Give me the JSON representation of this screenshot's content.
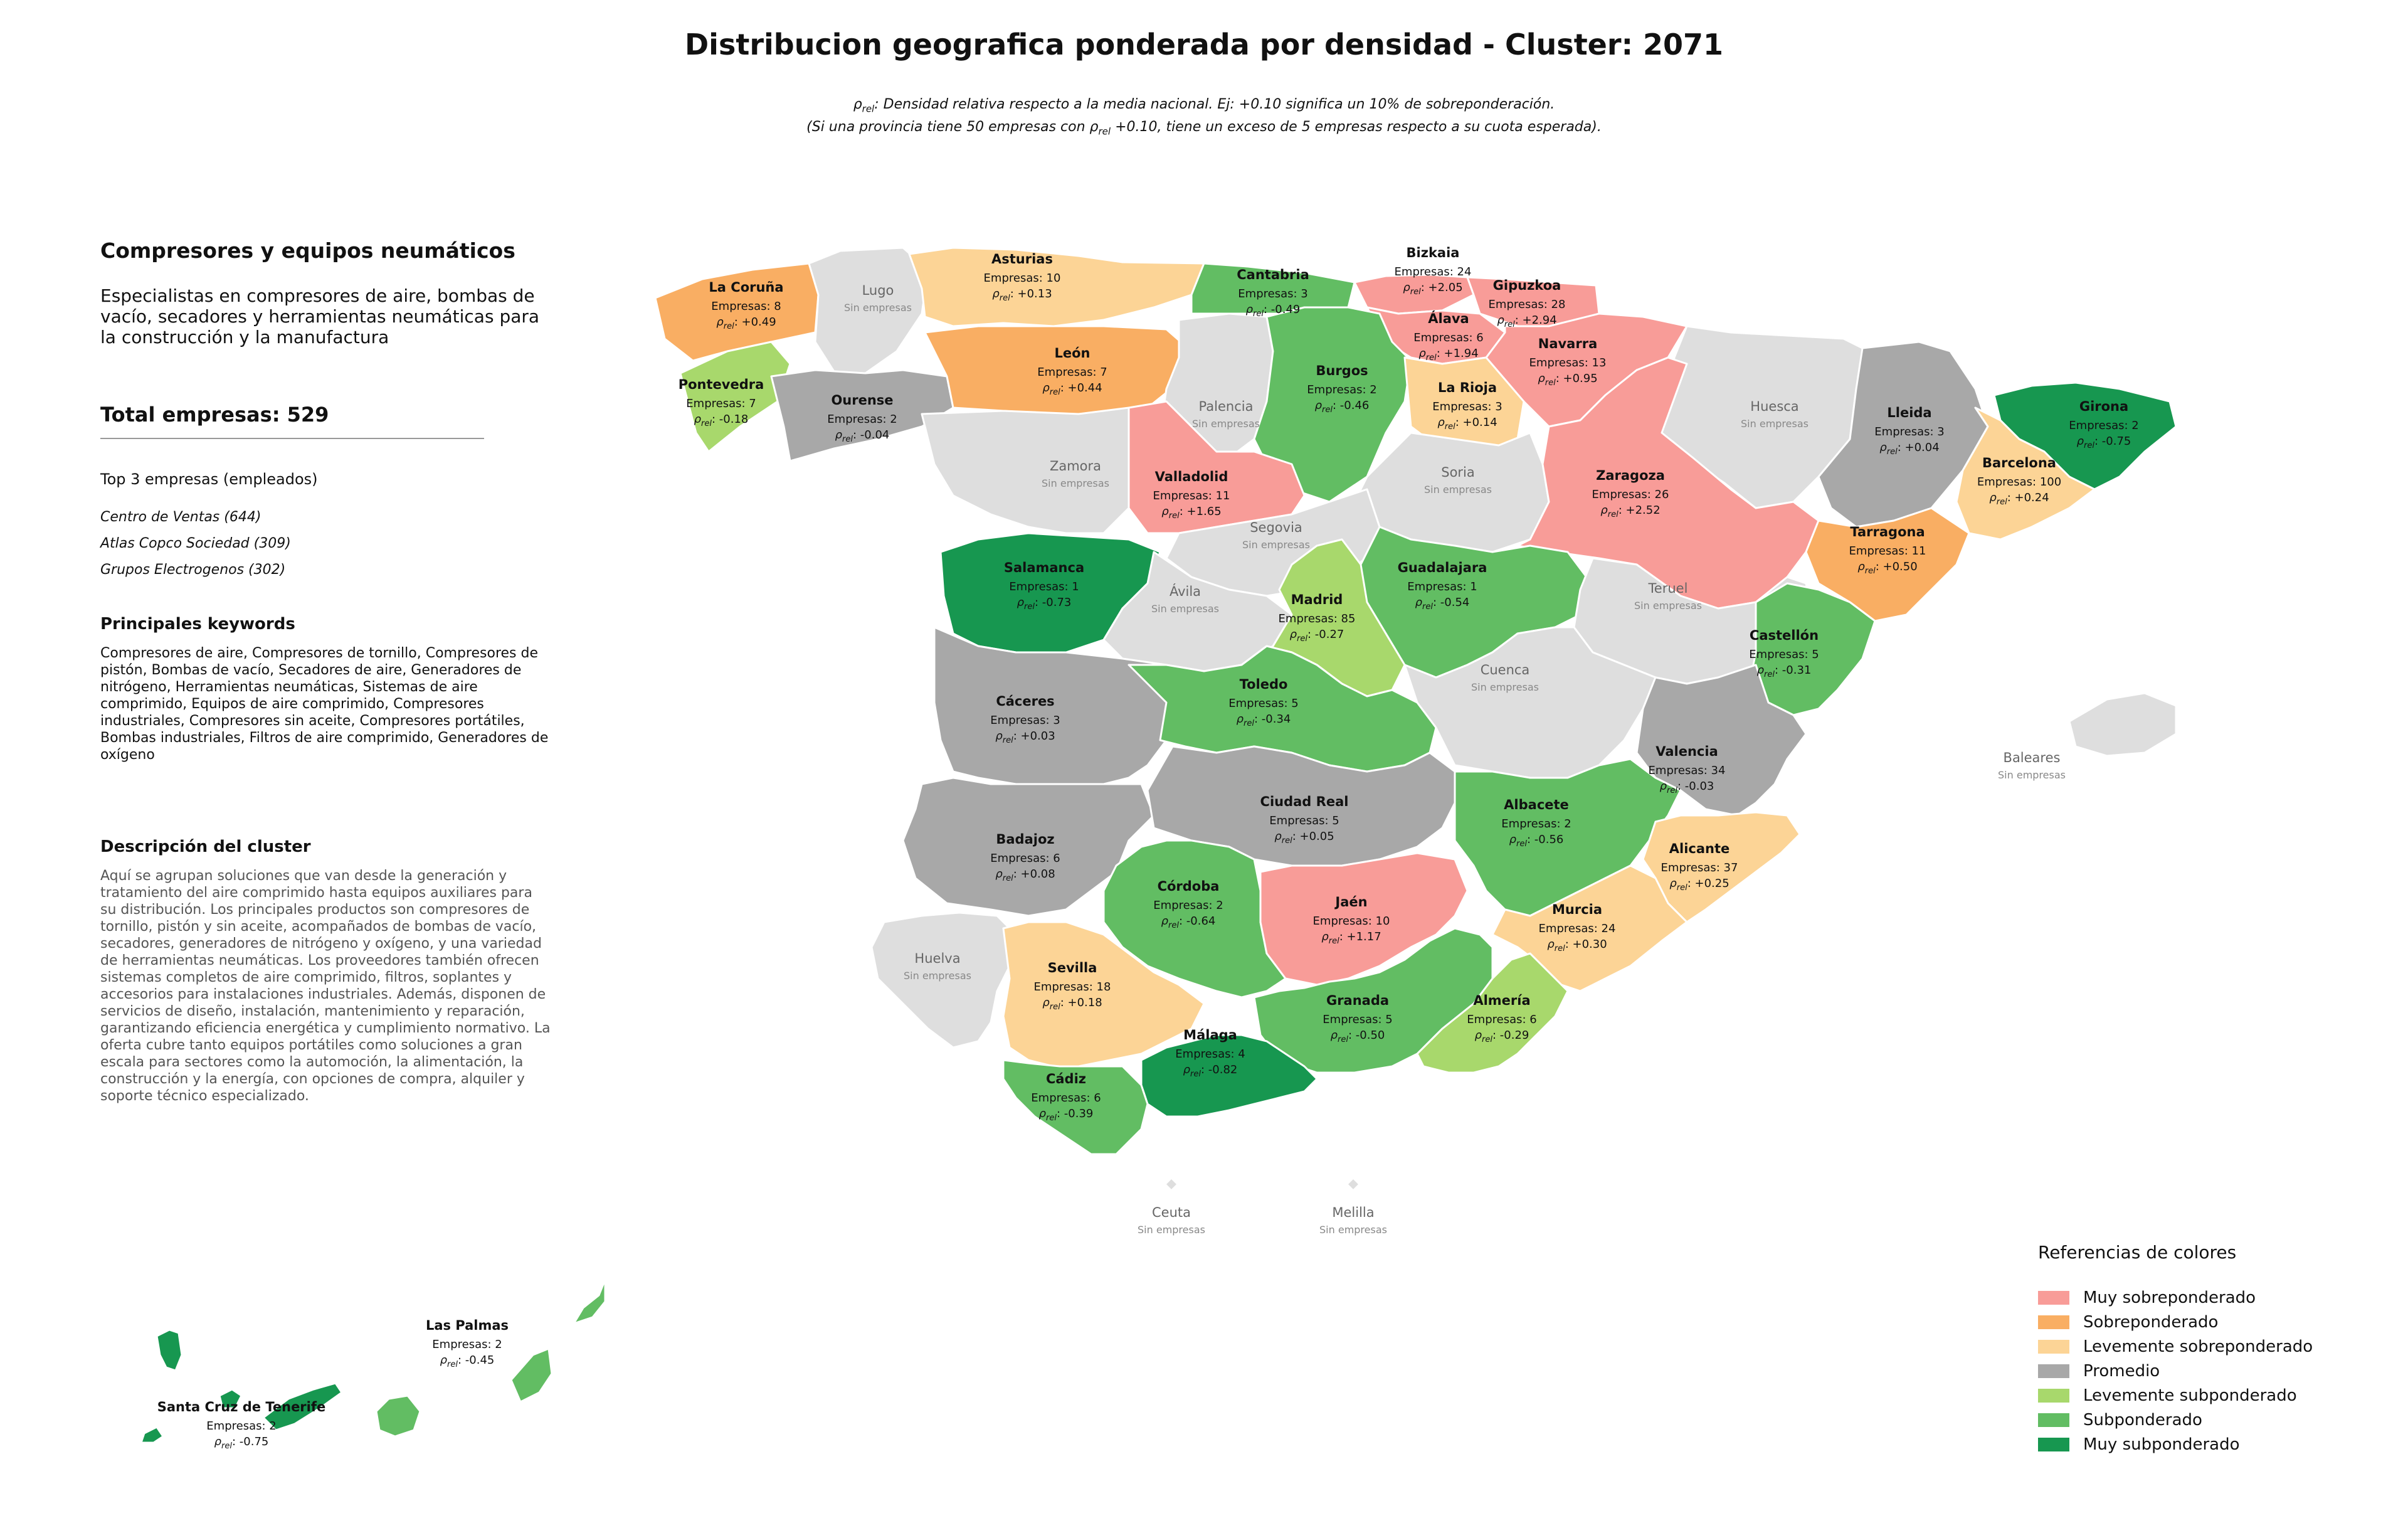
{
  "title": "Distribucion geografica ponderada por densidad - Cluster: 2071",
  "subtitle": {
    "line1_pre": "ρ",
    "line1_sub": "rel",
    "line1_post": ": Densidad relativa respecto a la media nacional. Ej: +0.10 significa un 10% de sobreponderación.",
    "line2_pre": "(Si una provincia tiene 50 empresas con ρ",
    "line2_sub": "rel",
    "line2_post": " +0.10, tiene un exceso de 5 empresas respecto a su cuota esperada)."
  },
  "sidebar": {
    "heading": "Compresores y equipos neumáticos",
    "description": "Especialistas en compresores de aire, bombas de vacío, secadores y herramientas neumáticas para la construcción y la manufactura",
    "total": "Total empresas: 529",
    "top_title": "Top 3 empresas (empleados)",
    "top_companies": [
      "Centro de Ventas (644)",
      "Atlas Copco Sociedad (309)",
      "Grupos Electrogenos (302)"
    ],
    "keywords_title": "Principales keywords",
    "keywords": "Compresores de aire, Compresores de tornillo, Compresores de pistón, Bombas de vacío, Secadores de aire, Generadores de nitrógeno, Herramientas neumáticas, Sistemas de aire comprimido, Equipos de aire comprimido, Compresores industriales, Compresores sin aceite, Compresores portátiles, Bombas industriales, Filtros de aire comprimido, Generadores de oxígeno",
    "cluster_title": "Descripción del cluster",
    "cluster_text": "Aquí se agrupan soluciones que van desde la generación y tratamiento del aire comprimido hasta equipos auxiliares para su distribución. Los principales productos son compresores de tornillo, pistón y sin aceite, acompañados de bombas de vacío, secadores, generadores de nitrógeno y oxígeno, y una variedad de herramientas neumáticas. Los proveedores también ofrecen sistemas completos de aire comprimido, filtros, soplantes y accesorios para instalaciones industriales. Además, disponen de servicios de diseño, instalación, mantenimiento y reparación, garantizando eficiencia energética y cumplimiento normativo. La oferta cubre tanto equipos portátiles como soluciones a gran escala para sectores como la automoción, la alimentación, la construcción y la energía, con opciones de compra, alquiler y soporte técnico especializado."
  },
  "labels": {
    "empresas_prefix": "Empresas: ",
    "rho": "ρ",
    "rho_sub": "rel",
    "no_companies": "Sin empresas"
  },
  "colors": {
    "muy_sobre": "#f89c98",
    "sobre": "#f9ae63",
    "lev_sobre": "#fcd496",
    "promedio": "#a8a8a8",
    "lev_sub": "#a8d86c",
    "sub": "#62bd63",
    "muy_sub": "#179750",
    "sin": "#dedede"
  },
  "legend": {
    "title": "Referencias de colores",
    "items": [
      {
        "label": "Muy sobreponderado",
        "color": "#f89c98"
      },
      {
        "label": "Sobreponderado",
        "color": "#f9ae63"
      },
      {
        "label": "Levemente sobreponderado",
        "color": "#fcd496"
      },
      {
        "label": "Promedio",
        "color": "#a8a8a8"
      },
      {
        "label": "Levemente subponderado",
        "color": "#a8d86c"
      },
      {
        "label": "Subponderado",
        "color": "#62bd63"
      },
      {
        "label": "Muy subponderado",
        "color": "#179750"
      }
    ]
  },
  "provinces": [
    {
      "name": "La Coruña",
      "empresas": 8,
      "rho": "+0.49",
      "cls": "sobre"
    },
    {
      "name": "Lugo",
      "empresas": null,
      "rho": null,
      "cls": "sin"
    },
    {
      "name": "Asturias",
      "empresas": 10,
      "rho": "+0.13",
      "cls": "lev_sobre"
    },
    {
      "name": "Cantabria",
      "empresas": 3,
      "rho": "-0.49",
      "cls": "sub"
    },
    {
      "name": "Bizkaia",
      "empresas": 24,
      "rho": "+2.05",
      "cls": "muy_sobre"
    },
    {
      "name": "Gipuzkoa",
      "empresas": 28,
      "rho": "+2.94",
      "cls": "muy_sobre"
    },
    {
      "name": "Álava",
      "empresas": 6,
      "rho": "+1.94",
      "cls": "muy_sobre"
    },
    {
      "name": "Navarra",
      "empresas": 13,
      "rho": "+0.95",
      "cls": "muy_sobre"
    },
    {
      "name": "Pontevedra",
      "empresas": 7,
      "rho": "-0.18",
      "cls": "lev_sub"
    },
    {
      "name": "Ourense",
      "empresas": 2,
      "rho": "-0.04",
      "cls": "promedio"
    },
    {
      "name": "León",
      "empresas": 7,
      "rho": "+0.44",
      "cls": "sobre"
    },
    {
      "name": "Palencia",
      "empresas": null,
      "rho": null,
      "cls": "sin"
    },
    {
      "name": "Burgos",
      "empresas": 2,
      "rho": "-0.46",
      "cls": "sub"
    },
    {
      "name": "La Rioja",
      "empresas": 3,
      "rho": "+0.14",
      "cls": "lev_sobre"
    },
    {
      "name": "Huesca",
      "empresas": null,
      "rho": null,
      "cls": "sin"
    },
    {
      "name": "Lleida",
      "empresas": 3,
      "rho": "+0.04",
      "cls": "promedio"
    },
    {
      "name": "Girona",
      "empresas": 2,
      "rho": "-0.75",
      "cls": "muy_sub"
    },
    {
      "name": "Barcelona",
      "empresas": 100,
      "rho": "+0.24",
      "cls": "lev_sobre"
    },
    {
      "name": "Zamora",
      "empresas": null,
      "rho": null,
      "cls": "sin"
    },
    {
      "name": "Valladolid",
      "empresas": 11,
      "rho": "+1.65",
      "cls": "muy_sobre"
    },
    {
      "name": "Soria",
      "empresas": null,
      "rho": null,
      "cls": "sin"
    },
    {
      "name": "Zaragoza",
      "empresas": 26,
      "rho": "+2.52",
      "cls": "muy_sobre"
    },
    {
      "name": "Tarragona",
      "empresas": 11,
      "rho": "+0.50",
      "cls": "sobre"
    },
    {
      "name": "Salamanca",
      "empresas": 1,
      "rho": "-0.73",
      "cls": "muy_sub"
    },
    {
      "name": "Segovia",
      "empresas": null,
      "rho": null,
      "cls": "sin"
    },
    {
      "name": "Guadalajara",
      "empresas": 1,
      "rho": "-0.54",
      "cls": "sub"
    },
    {
      "name": "Ávila",
      "empresas": null,
      "rho": null,
      "cls": "sin"
    },
    {
      "name": "Madrid",
      "empresas": 85,
      "rho": "-0.27",
      "cls": "lev_sub"
    },
    {
      "name": "Teruel",
      "empresas": null,
      "rho": null,
      "cls": "sin"
    },
    {
      "name": "Castellón",
      "empresas": 5,
      "rho": "-0.31",
      "cls": "sub"
    },
    {
      "name": "Cáceres",
      "empresas": 3,
      "rho": "+0.03",
      "cls": "promedio"
    },
    {
      "name": "Toledo",
      "empresas": 5,
      "rho": "-0.34",
      "cls": "sub"
    },
    {
      "name": "Cuenca",
      "empresas": null,
      "rho": null,
      "cls": "sin"
    },
    {
      "name": "Valencia",
      "empresas": 34,
      "rho": "-0.03",
      "cls": "promedio"
    },
    {
      "name": "Baleares",
      "empresas": null,
      "rho": null,
      "cls": "sin"
    },
    {
      "name": "Badajoz",
      "empresas": 6,
      "rho": "+0.08",
      "cls": "promedio"
    },
    {
      "name": "Ciudad Real",
      "empresas": 5,
      "rho": "+0.05",
      "cls": "promedio"
    },
    {
      "name": "Albacete",
      "empresas": 2,
      "rho": "-0.56",
      "cls": "sub"
    },
    {
      "name": "Alicante",
      "empresas": 37,
      "rho": "+0.25",
      "cls": "lev_sobre"
    },
    {
      "name": "Córdoba",
      "empresas": 2,
      "rho": "-0.64",
      "cls": "sub"
    },
    {
      "name": "Jaén",
      "empresas": 10,
      "rho": "+1.17",
      "cls": "muy_sobre"
    },
    {
      "name": "Murcia",
      "empresas": 24,
      "rho": "+0.30",
      "cls": "lev_sobre"
    },
    {
      "name": "Huelva",
      "empresas": null,
      "rho": null,
      "cls": "sin"
    },
    {
      "name": "Sevilla",
      "empresas": 18,
      "rho": "+0.18",
      "cls": "lev_sobre"
    },
    {
      "name": "Granada",
      "empresas": 5,
      "rho": "-0.50",
      "cls": "sub"
    },
    {
      "name": "Almería",
      "empresas": 6,
      "rho": "-0.29",
      "cls": "lev_sub"
    },
    {
      "name": "Málaga",
      "empresas": 4,
      "rho": "-0.82",
      "cls": "muy_sub"
    },
    {
      "name": "Cádiz",
      "empresas": 6,
      "rho": "-0.39",
      "cls": "sub"
    },
    {
      "name": "Ceuta",
      "empresas": null,
      "rho": null,
      "cls": "sin"
    },
    {
      "name": "Melilla",
      "empresas": null,
      "rho": null,
      "cls": "sin"
    },
    {
      "name": "Las Palmas",
      "empresas": 2,
      "rho": "-0.45",
      "cls": "sub"
    },
    {
      "name": "Santa Cruz de Tenerife",
      "empresas": 2,
      "rho": "-0.75",
      "cls": "muy_sub"
    }
  ]
}
